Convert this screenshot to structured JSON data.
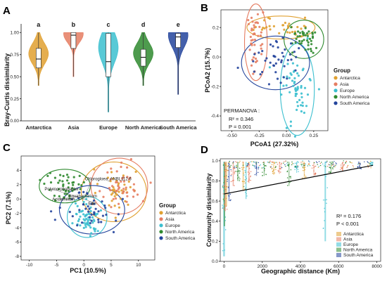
{
  "colors": {
    "Antarctica": "#e0a030",
    "Asia": "#e57d62",
    "Europe": "#3bbfcf",
    "North America": "#2f8a2f",
    "South America": "#23449c"
  },
  "chart_data": [
    {
      "panel": "A",
      "type": "violin",
      "categories": [
        "Antarctica",
        "Asia",
        "Europe",
        "North America",
        "South America"
      ],
      "ylabel": "Bray-Curtis dissimilarity",
      "ylim": [
        0,
        1.05
      ],
      "yticks": [
        "0.00",
        "0.25",
        "0.50",
        "0.75",
        "1.00"
      ],
      "letters": [
        "a",
        "b",
        "c",
        "d",
        "e"
      ],
      "medians": [
        0.7,
        0.97,
        0.67,
        0.72,
        0.95
      ],
      "q1": [
        0.6,
        0.82,
        0.5,
        0.62,
        0.83
      ],
      "q3": [
        0.82,
        1.0,
        0.99,
        0.81,
        0.99
      ],
      "ranges": [
        [
          0.4,
          1.0
        ],
        [
          0.5,
          1.0
        ],
        [
          0.1,
          1.0
        ],
        [
          0.4,
          1.0
        ],
        [
          0.3,
          1.0
        ]
      ]
    },
    {
      "panel": "B",
      "type": "scatter",
      "xlabel": "PCoA1 (27.32%)",
      "ylabel": "PCoA2 (15.7%)",
      "xticks": [
        "-0.50",
        "-0.25",
        "0.00",
        "0.25"
      ],
      "yticks": [
        "-0.4",
        "-0.2",
        "0.0",
        "0.2"
      ],
      "xlim": [
        -0.6,
        0.38
      ],
      "ylim": [
        -0.5,
        0.32
      ],
      "legend_title": "Group",
      "legend": [
        "Antarctica",
        "Asia",
        "Europe",
        "North America",
        "South America"
      ],
      "annotation": [
        "PERMANOVA :",
        "R² = 0.346",
        "P = 0.001"
      ],
      "series": [
        {
          "name": "Antarctica",
          "cx": -0.05,
          "cy": 0.2,
          "sx": 0.12,
          "sy": 0.03,
          "n": 32
        },
        {
          "name": "Asia",
          "cx": -0.28,
          "cy": 0.1,
          "sx": 0.04,
          "sy": 0.1,
          "n": 42
        },
        {
          "name": "Europe",
          "cx": 0.1,
          "cy": -0.22,
          "sx": 0.06,
          "sy": 0.12,
          "n": 58
        },
        {
          "name": "North America",
          "cx": 0.16,
          "cy": 0.12,
          "sx": 0.07,
          "sy": 0.05,
          "n": 42
        },
        {
          "name": "South America",
          "cx": -0.1,
          "cy": -0.04,
          "sx": 0.12,
          "sy": 0.07,
          "n": 44
        }
      ]
    },
    {
      "panel": "C",
      "type": "scatter",
      "xlabel": "PC1 (10.5%)",
      "ylabel": "PC2 (7.1%)",
      "xticks": [
        "-10",
        "-5",
        "0",
        "5",
        "10"
      ],
      "yticks": [
        "-8",
        "-6",
        "-4",
        "-2",
        "0",
        "2",
        "4"
      ],
      "xlim": [
        -11.5,
        13
      ],
      "ylim": [
        -8.5,
        6
      ],
      "legend_title": "Group",
      "legend": [
        "Antarctica",
        "Asia",
        "Europe",
        "North America",
        "South America"
      ],
      "vector_labels": [
        "Polymorphobacter",
        "Chlorogloea_ANBL112.6",
        "Acidiphilium",
        "Aquabacterium",
        "Ellin"
      ],
      "series": [
        {
          "name": "Antarctica",
          "cx": 5.5,
          "cy": 1.0,
          "sx": 2.3,
          "sy": 1.6,
          "n": 42
        },
        {
          "name": "Asia",
          "cx": 6.5,
          "cy": 1.8,
          "sx": 2.0,
          "sy": 1.5,
          "n": 46
        },
        {
          "name": "Europe",
          "cx": 0.6,
          "cy": -2.5,
          "sx": 1.4,
          "sy": 1.1,
          "n": 58
        },
        {
          "name": "North America",
          "cx": -3.5,
          "cy": 1.8,
          "sx": 1.8,
          "sy": 0.9,
          "n": 46
        },
        {
          "name": "South America",
          "cx": 1.5,
          "cy": -1.5,
          "sx": 2.3,
          "sy": 1.3,
          "n": 44
        }
      ]
    },
    {
      "panel": "D",
      "type": "scatter",
      "xlabel": "Geographic distance (Km)",
      "ylabel": "Community dissimilarity",
      "xticks": [
        "0",
        "2000",
        "4000",
        "6000",
        "8000"
      ],
      "yticks": [
        "0.0",
        "0.2",
        "0.4",
        "0.6",
        "0.8",
        "1.0"
      ],
      "xlim": [
        -200,
        8200
      ],
      "ylim": [
        0,
        1.02
      ],
      "fit_line": {
        "x": [
          0,
          7800
        ],
        "y": [
          0.67,
          0.955
        ]
      },
      "annotation": [
        "R² = 0.176",
        "P < 0.001"
      ],
      "legend": [
        "Antarctica",
        "Asia",
        "Europe",
        "North America",
        "South America"
      ]
    }
  ]
}
